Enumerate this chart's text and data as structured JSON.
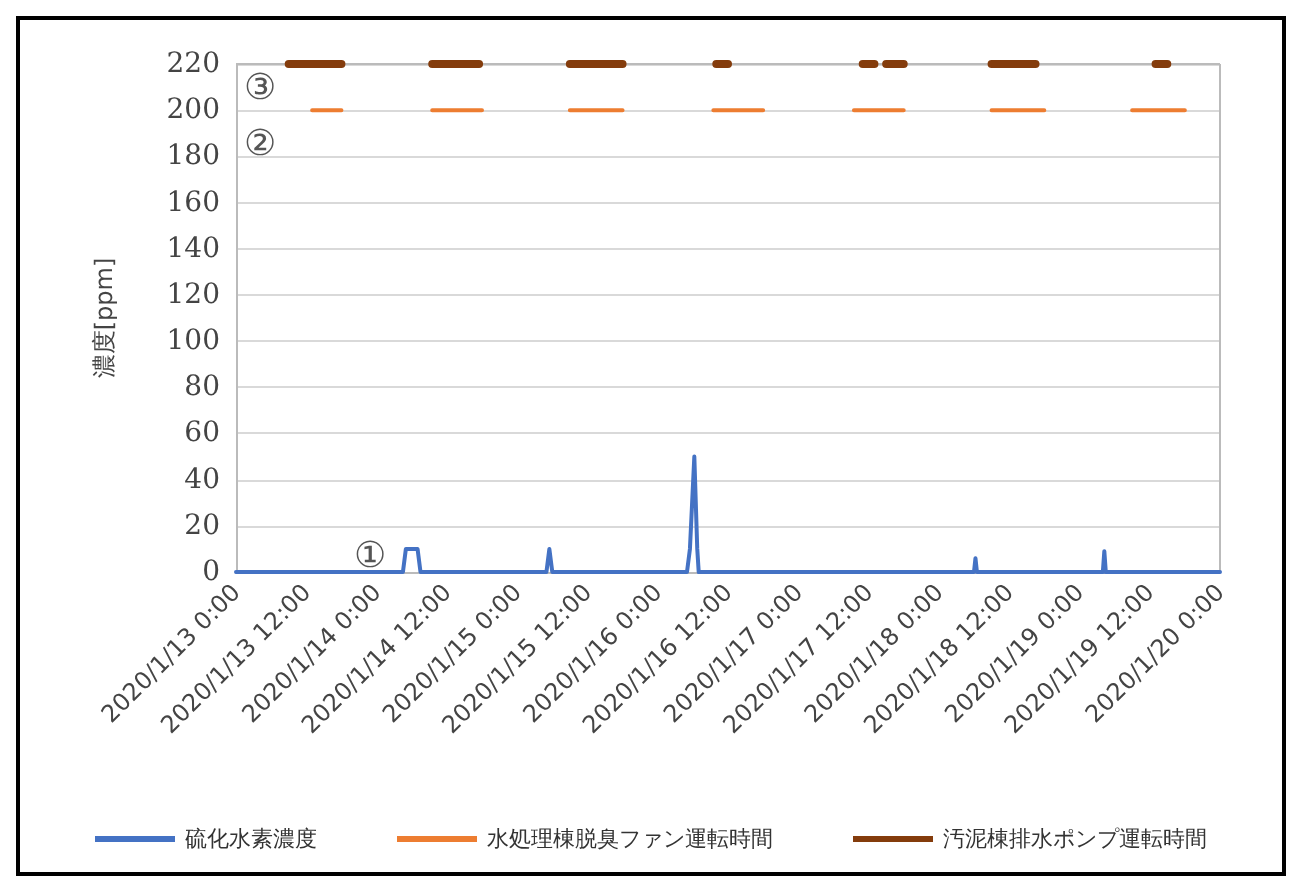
{
  "chart_data": {
    "type": "line",
    "ylabel": "濃度[ppm]",
    "xlim": [
      "2020-01-13T00:00",
      "2020-01-20T00:00"
    ],
    "xticks": [
      {
        "value": "2020-01-13T00:00",
        "label": "2020/1/13 0:00"
      },
      {
        "value": "2020-01-13T12:00",
        "label": "2020/1/13 12:00"
      },
      {
        "value": "2020-01-14T00:00",
        "label": "2020/1/14 0:00"
      },
      {
        "value": "2020-01-14T12:00",
        "label": "2020/1/14 12:00"
      },
      {
        "value": "2020-01-15T00:00",
        "label": "2020/1/15 0:00"
      },
      {
        "value": "2020-01-15T12:00",
        "label": "2020/1/15 12:00"
      },
      {
        "value": "2020-01-16T00:00",
        "label": "2020/1/16 0:00"
      },
      {
        "value": "2020-01-16T12:00",
        "label": "2020/1/16 12:00"
      },
      {
        "value": "2020-01-17T00:00",
        "label": "2020/1/17 0:00"
      },
      {
        "value": "2020-01-17T12:00",
        "label": "2020/1/17 12:00"
      },
      {
        "value": "2020-01-18T00:00",
        "label": "2020/1/18 0:00"
      },
      {
        "value": "2020-01-18T12:00",
        "label": "2020/1/18 12:00"
      },
      {
        "value": "2020-01-19T00:00",
        "label": "2020/1/19 0:00"
      },
      {
        "value": "2020-01-19T12:00",
        "label": "2020/1/19 12:00"
      },
      {
        "value": "2020-01-20T00:00",
        "label": "2020/1/20 0:00"
      }
    ],
    "ylim": [
      0,
      220
    ],
    "yticks": [
      0,
      20,
      40,
      60,
      80,
      100,
      120,
      140,
      160,
      180,
      200,
      220
    ],
    "grid": "y",
    "legend": "bottom",
    "marker": "none",
    "line_style": "solid",
    "series": [
      {
        "name": "硫化水素濃度",
        "color": "#4472c4",
        "x": [
          "2020-01-13T00:00",
          "2020-01-14T04:30",
          "2020-01-14T05:00",
          "2020-01-14T07:00",
          "2020-01-14T07:30",
          "2020-01-15T05:00",
          "2020-01-15T05:30",
          "2020-01-15T06:00",
          "2020-01-16T05:00",
          "2020-01-16T05:30",
          "2020-01-16T06:15",
          "2020-01-16T06:45",
          "2020-01-16T07:00",
          "2020-01-18T06:00",
          "2020-01-18T06:15",
          "2020-01-18T06:30",
          "2020-01-19T04:00",
          "2020-01-19T04:15",
          "2020-01-19T04:30",
          "2020-01-20T00:00"
        ],
        "values": [
          0,
          0,
          10,
          10,
          0,
          0,
          10,
          0,
          0,
          10,
          50,
          10,
          0,
          0,
          6,
          0,
          0,
          9,
          0,
          0
        ]
      },
      {
        "name": "水処理棟脱臭ファン運転時間",
        "color": "#ed7d31",
        "x": [
          "2020-01-13T13:00",
          "2020-01-13T18:00",
          "2020-01-14T00:00",
          "2020-01-14T09:30",
          "2020-01-14T18:00",
          "2020-01-15T00:00",
          "2020-01-15T09:00",
          "2020-01-15T18:00",
          "2020-01-16T00:00",
          "2020-01-16T09:30",
          "2020-01-16T18:00",
          "2020-01-17T00:00",
          "2020-01-17T09:30",
          "2020-01-17T18:00",
          "2020-01-18T00:00",
          "2020-01-18T09:00",
          "2020-01-18T18:00",
          "2020-01-19T00:00",
          "2020-01-19T09:00",
          "2020-01-19T18:00"
        ],
        "values": [
          200,
          200,
          null,
          200,
          200,
          null,
          200,
          200,
          null,
          200,
          200,
          null,
          200,
          200,
          null,
          200,
          200,
          null,
          200,
          200
        ]
      },
      {
        "name": "汚泥棟排水ポンプ運転時間",
        "color": "#843c0c",
        "x": [
          "2020-01-13T09:00",
          "2020-01-13T18:00",
          "2020-01-14T00:00",
          "2020-01-14T09:30",
          "2020-01-14T17:30",
          "2020-01-15T00:00",
          "2020-01-15T09:00",
          "2020-01-15T18:00",
          "2020-01-16T00:00",
          "2020-01-16T10:00",
          "2020-01-16T12:00",
          "2020-01-16T13:00",
          "2020-01-17T11:00",
          "2020-01-17T13:00",
          "2020-01-17T14:00",
          "2020-01-17T15:00",
          "2020-01-17T18:00",
          "2020-01-18T00:00",
          "2020-01-18T09:00",
          "2020-01-18T16:30",
          "2020-01-19T00:00",
          "2020-01-19T13:00",
          "2020-01-19T15:00"
        ],
        "values": [
          220,
          220,
          null,
          220,
          220,
          null,
          220,
          220,
          null,
          220,
          220,
          null,
          220,
          220,
          null,
          220,
          220,
          null,
          220,
          220,
          null,
          220,
          220
        ]
      }
    ],
    "annotations": [
      "①",
      "②",
      "③"
    ]
  }
}
